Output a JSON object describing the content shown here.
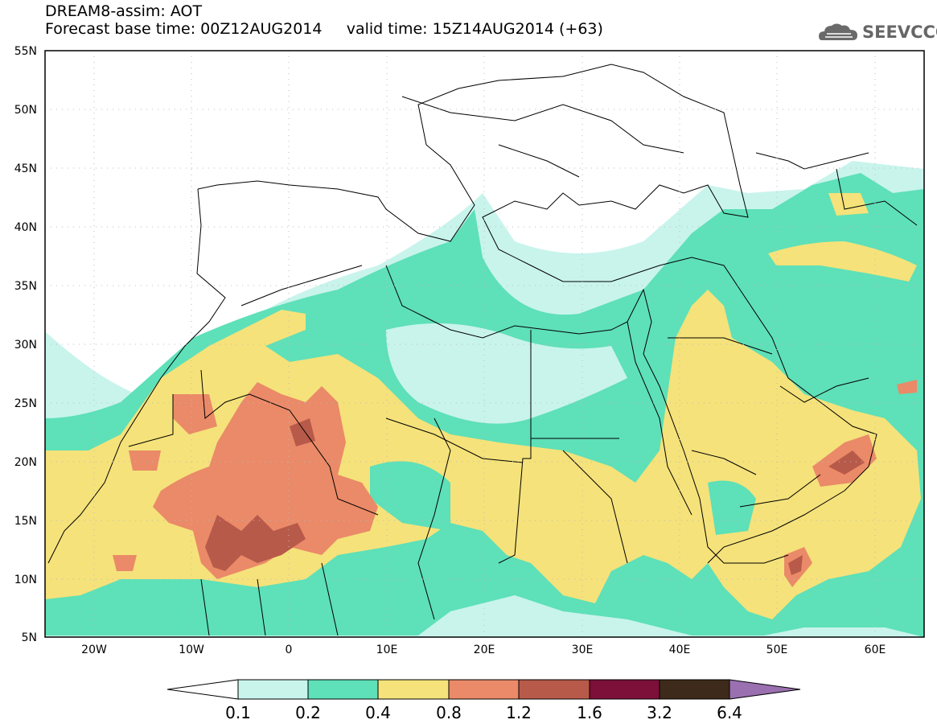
{
  "title": {
    "line1": "DREAM8-assim: AOT",
    "base_time": "Forecast base time: 00Z12AUG2014",
    "valid_time": "valid time: 15Z14AUG2014 (+63)"
  },
  "logo": {
    "text": "SEEVCCC",
    "icon": "cloud-icon"
  },
  "map": {
    "lat_labels": [
      "55N",
      "50N",
      "45N",
      "40N",
      "35N",
      "30N",
      "25N",
      "20N",
      "15N",
      "10N",
      "5N"
    ],
    "lon_labels": [
      "20W",
      "10W",
      "0",
      "10E",
      "20E",
      "30E",
      "40E",
      "50E",
      "60E"
    ],
    "variable": "AOT",
    "extent": {
      "lon": [
        -25,
        65
      ],
      "lat": [
        5,
        55
      ]
    },
    "colors": {
      "c0": "#c8f4ec",
      "c1": "#5ee0b8",
      "c2": "#f5e27a",
      "c3": "#ea8a68",
      "c4": "#b85a4a",
      "c5": "#7c1038",
      "c6": "#3e2a1a",
      "c7": "#9a70b0"
    }
  },
  "legend": {
    "labels": [
      "0.1",
      "0.2",
      "0.4",
      "0.8",
      "1.2",
      "1.6",
      "3.2",
      "6.4"
    ]
  }
}
